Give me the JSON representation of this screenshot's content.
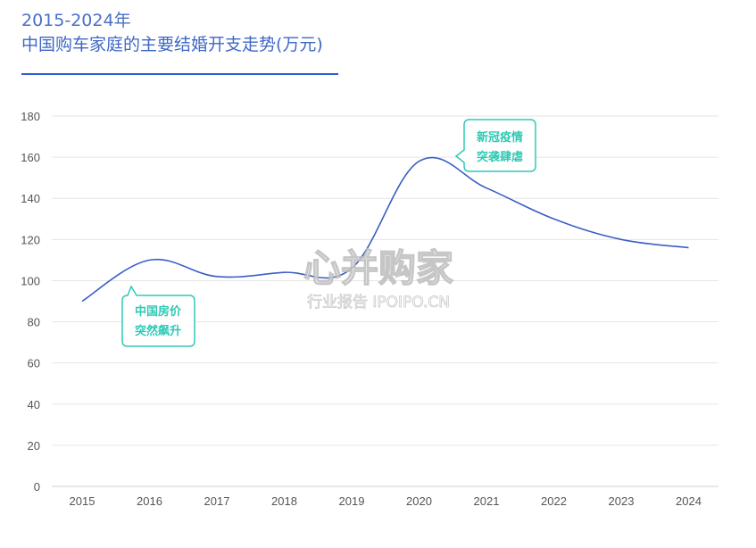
{
  "header": {
    "line1": "2015-2024年",
    "line2": "中国购车家庭的主要结婚开支走势(万元)"
  },
  "chart_data": {
    "type": "line",
    "title": "中国购车家庭的主要结婚开支走势(万元)",
    "subtitle": "2015-2024年",
    "x": [
      "2015",
      "2016",
      "2017",
      "2018",
      "2019",
      "2020",
      "2021",
      "2022",
      "2023",
      "2024"
    ],
    "y_ticks": [
      "0",
      "20",
      "40",
      "60",
      "80",
      "100",
      "120",
      "140",
      "160",
      "180"
    ],
    "series": [
      {
        "values": [
          90,
          110,
          102,
          104,
          106,
          158,
          145,
          130,
          120,
          116
        ]
      }
    ],
    "ylim": [
      0,
      180
    ],
    "grid": true,
    "line_color": "#3a5fc4",
    "annotations": [
      {
        "x": "2016",
        "lines": [
          "中国房价",
          "突然飙升"
        ]
      },
      {
        "x": "2020",
        "lines": [
          "新冠疫情",
          "突袭肆虐"
        ]
      }
    ]
  },
  "watermark": {
    "brand": "心并购家",
    "sub": "行业报告 IPOIPO.CN"
  },
  "colors": {
    "accent": "#2ec9b5",
    "grid": "#e6e6e6",
    "title": "#3f67c6"
  }
}
